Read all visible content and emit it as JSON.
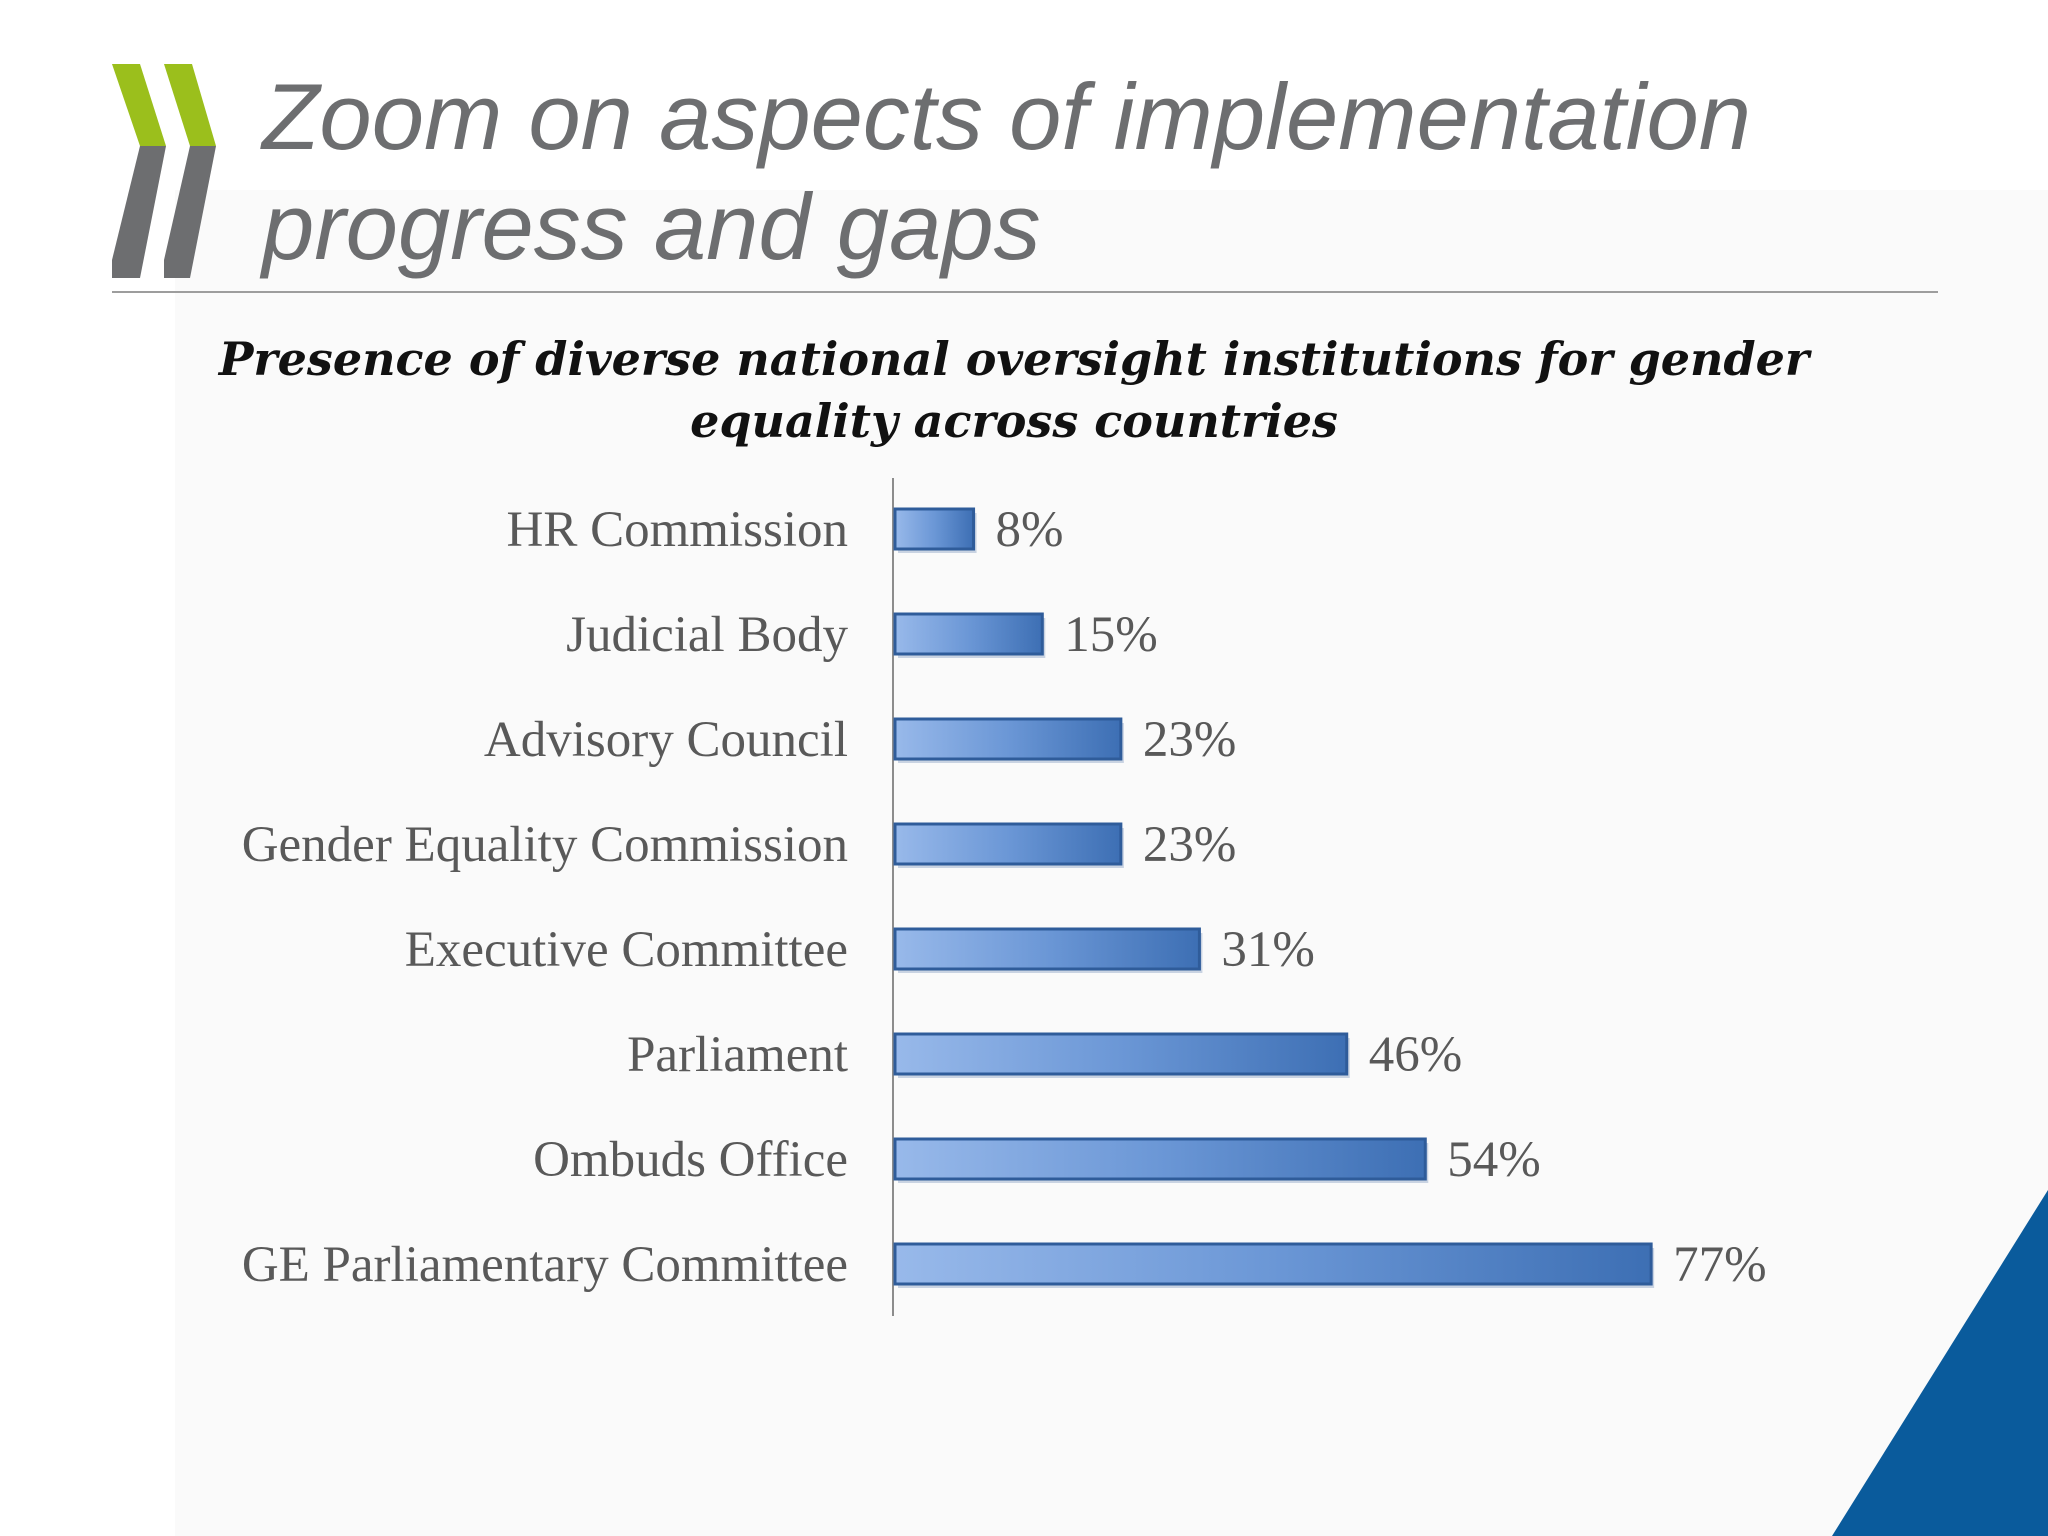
{
  "slide": {
    "title": "Zoom on aspects of implementation\nprogress and gaps"
  },
  "colors": {
    "logo_green": "#9bbf1c",
    "logo_gray": "#6d6e70",
    "bar_fill_light": "#98b9ea",
    "bar_fill_dark": "#3d6fb4",
    "bar_border": "#2f5c9a",
    "corner_blue": "#0a5b9c"
  },
  "chart_data": {
    "type": "bar",
    "orientation": "horizontal",
    "title": "Presence of diverse national oversight institutions for gender equality  across countries",
    "categories": [
      "HR Commission",
      "Judicial Body",
      "Advisory Council",
      "Gender Equality Commission",
      "Executive Committee",
      "Parliament",
      "Ombuds Office",
      "GE Parliamentary Committee"
    ],
    "values": [
      8,
      15,
      23,
      23,
      31,
      46,
      54,
      77
    ],
    "value_labels": [
      "8%",
      "15%",
      "23%",
      "23%",
      "31%",
      "46%",
      "54%",
      "77%"
    ],
    "unit": "%",
    "xlim": [
      0,
      100
    ],
    "grid": false,
    "legend": "none"
  }
}
